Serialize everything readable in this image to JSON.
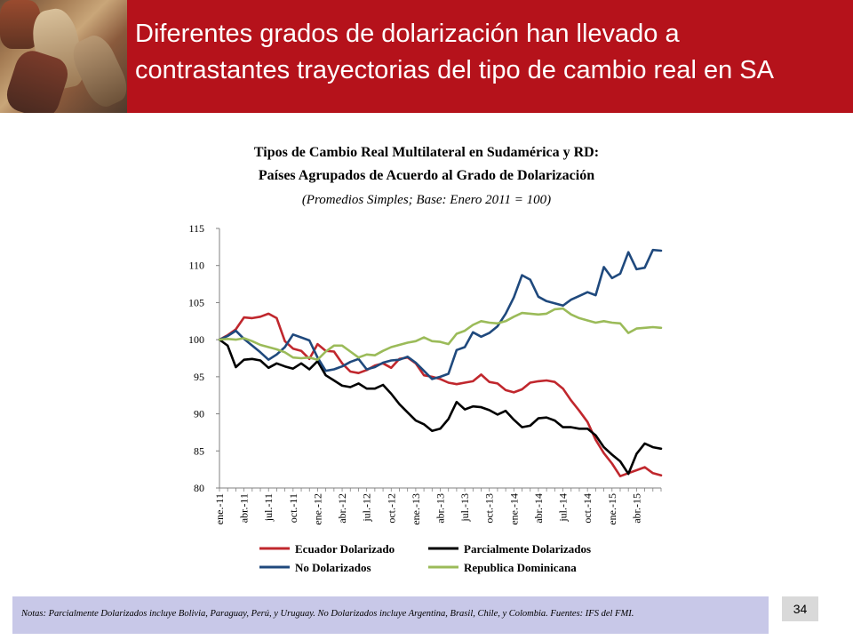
{
  "slide": {
    "title_line1": "Diferentes grados de dolarización han llevado a",
    "title_line2": "contrastantes trayectorias del tipo de cambio real en SA",
    "notes": "Notas: Parcialmente Dolarizados incluye Bolivia, Paraguay, Perú, y Uruguay. No  Dolarizados incluye Argentina, Brasil, Chile, y Colombia. Fuentes: IFS del FMI.",
    "page_number": "34"
  },
  "chart_data": {
    "type": "line",
    "title": "Tipos de Cambio Real Multilateral en Sudamérica y RD:",
    "subtitle": "Países Agrupados de Acuerdo al Grado de Dolarización",
    "note": "(Promedios Simples; Base: Enero 2011 = 100)",
    "xlabel": "",
    "ylabel": "",
    "ylim": [
      80,
      115
    ],
    "y_ticks": [
      80,
      85,
      90,
      95,
      100,
      105,
      110,
      115
    ],
    "x_tick_labels": [
      "ene.-11",
      "abr.-11",
      "jul.-11",
      "oct.-11",
      "ene.-12",
      "abr.-12",
      "jul.-12",
      "oct.-12",
      "ene.-13",
      "abr.-13",
      "jul.-13",
      "oct.-13",
      "ene.-14",
      "abr.-14",
      "jul.-14",
      "oct.-14",
      "ene.-15",
      "abr.-15"
    ],
    "x_tick_every": 3,
    "n_points": 55,
    "legend_position": "bottom",
    "series": [
      {
        "name": "Ecuador Dolarizado",
        "color": "#c0272d",
        "values": [
          100.0,
          100.6,
          101.4,
          103.0,
          102.9,
          103.1,
          103.5,
          102.9,
          99.8,
          98.8,
          98.5,
          97.4,
          99.4,
          98.5,
          98.4,
          96.8,
          95.7,
          95.5,
          95.9,
          96.5,
          96.8,
          96.2,
          97.4,
          97.6,
          96.8,
          95.2,
          95.0,
          94.7,
          94.2,
          94.0,
          94.2,
          94.4,
          95.3,
          94.3,
          94.1,
          93.2,
          92.9,
          93.3,
          94.2,
          94.4,
          94.5,
          94.3,
          93.4,
          91.8,
          90.4,
          88.9,
          86.5,
          84.7,
          83.3,
          81.6,
          82.0,
          82.4,
          82.8,
          82.0,
          81.7
        ]
      },
      {
        "name": "Parcialmente Dolarizados",
        "color": "#000000",
        "values": [
          100.0,
          99.2,
          96.3,
          97.3,
          97.4,
          97.2,
          96.2,
          96.8,
          96.4,
          96.1,
          96.8,
          96.0,
          97.1,
          95.2,
          94.5,
          93.8,
          93.6,
          94.1,
          93.4,
          93.4,
          93.9,
          92.7,
          91.3,
          90.2,
          89.1,
          88.6,
          87.7,
          88.0,
          89.3,
          91.6,
          90.6,
          91.0,
          90.9,
          90.5,
          89.9,
          90.4,
          89.2,
          88.2,
          88.4,
          89.4,
          89.5,
          89.1,
          88.2,
          88.2,
          88.0,
          88.0,
          87.1,
          85.5,
          84.5,
          83.6,
          81.9,
          84.6,
          86.0,
          85.5,
          85.3
        ]
      },
      {
        "name": "No Dolarizados",
        "color": "#1f497d",
        "values": [
          100.0,
          100.5,
          101.2,
          100.1,
          99.2,
          98.3,
          97.3,
          98.0,
          99.0,
          100.7,
          100.3,
          99.9,
          97.6,
          95.8,
          96.0,
          96.4,
          97.0,
          97.4,
          96.0,
          96.3,
          96.9,
          97.2,
          97.3,
          97.7,
          96.9,
          95.8,
          94.7,
          95.0,
          95.4,
          98.6,
          99.0,
          101.0,
          100.4,
          100.9,
          101.8,
          103.5,
          105.7,
          108.7,
          108.1,
          105.8,
          105.2,
          104.9,
          104.6,
          105.4,
          105.9,
          106.4,
          106.0,
          109.8,
          108.3,
          108.9,
          111.8,
          109.5,
          109.7,
          112.1,
          112.0
        ]
      },
      {
        "name": "Republica Dominicana",
        "color": "#9bbb59",
        "values": [
          100.0,
          100.1,
          100.0,
          100.2,
          99.8,
          99.3,
          99.0,
          98.7,
          98.3,
          97.6,
          97.5,
          97.6,
          97.3,
          98.4,
          99.2,
          99.2,
          98.4,
          97.6,
          98.0,
          97.9,
          98.5,
          99.0,
          99.3,
          99.6,
          99.8,
          100.3,
          99.8,
          99.7,
          99.4,
          100.8,
          101.2,
          102.0,
          102.5,
          102.3,
          102.2,
          102.5,
          103.1,
          103.6,
          103.5,
          103.4,
          103.5,
          104.1,
          104.2,
          103.4,
          102.9,
          102.6,
          102.3,
          102.5,
          102.3,
          102.2,
          100.9,
          101.5,
          101.6,
          101.7,
          101.6
        ]
      }
    ]
  }
}
